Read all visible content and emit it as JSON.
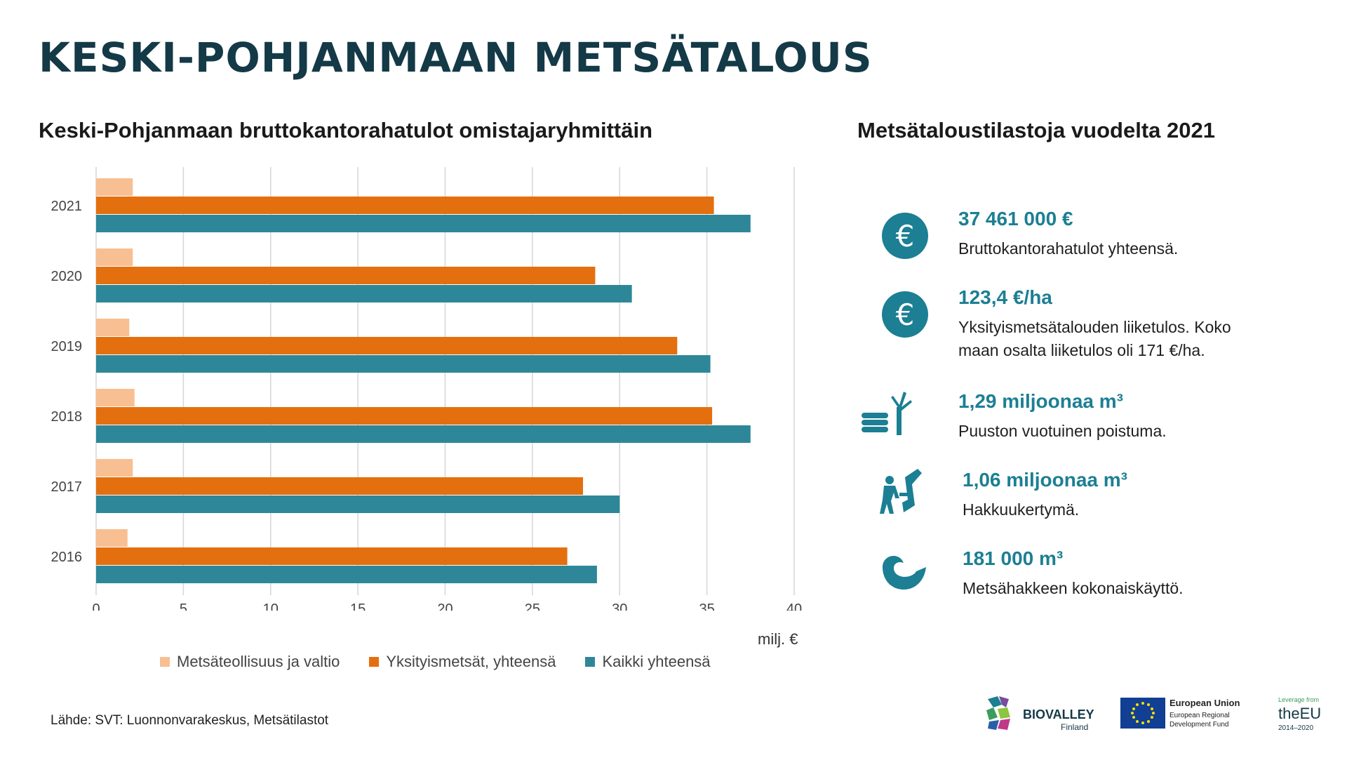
{
  "page_title": "KESKI-POHJANMAAN METSÄTALOUS",
  "chart_data": {
    "type": "bar",
    "orientation": "horizontal",
    "title": "Keski-Pohjanmaan bruttokantorahatulot omistajaryhmittäin",
    "categories": [
      "2021",
      "2020",
      "2019",
      "2018",
      "2017",
      "2016"
    ],
    "series": [
      {
        "name": "Metsäteollisuus ja valtio",
        "color": "#f8bf92",
        "values": [
          2.1,
          2.1,
          1.9,
          2.2,
          2.1,
          1.8
        ]
      },
      {
        "name": "Yksityismetsät, yhteensä",
        "color": "#e46f0f",
        "values": [
          35.4,
          28.6,
          33.3,
          35.3,
          27.9,
          27.0
        ]
      },
      {
        "name": "Kaikki yhteensä",
        "color": "#2e8799",
        "values": [
          37.5,
          30.7,
          35.2,
          37.5,
          30.0,
          28.7
        ]
      }
    ],
    "xlim": [
      0,
      40
    ],
    "xticks": [
      "0",
      "5",
      "10",
      "15",
      "20",
      "25",
      "30",
      "35",
      "40"
    ],
    "xunit": "milj. €",
    "grid": true,
    "legend_position": "bottom"
  },
  "stats_title": "Metsätaloustilastoja vuodelta 2021",
  "stats": [
    {
      "icon": "euro-icon",
      "value": "37 461 000 €",
      "desc": "Bruttokantorahatulot yhteensä."
    },
    {
      "icon": "euro-icon",
      "value": "123,4 €/ha",
      "desc": "Yksityismetsätalouden liiketulos. Koko maan osalta liiketulos oli 171 €/ha."
    },
    {
      "icon": "tree-and-logs-icon",
      "value": "1,29 miljoonaa m³",
      "desc": "Puuston vuotuinen poistuma."
    },
    {
      "icon": "lumberjack-icon",
      "value": "1,06 miljoonaa m³",
      "desc": "Hakkuukertymä."
    },
    {
      "icon": "wood-chip-icon",
      "value": "181 000 m³",
      "desc": "Metsähakkeen kokonaiskäyttö."
    }
  ],
  "source": "Lähde: SVT: Luonnonvarakeskus, Metsätilastot",
  "logos": {
    "biovalley": {
      "name": "BIOVALLEY",
      "sub": "Finland"
    },
    "eu": {
      "line1": "European Union",
      "line2": "European Regional",
      "line3": "Development Fund"
    },
    "leverage": {
      "line1": "Leverage from",
      "line2": "theEU",
      "line3": "2014–2020"
    }
  },
  "colors": {
    "accent": "#1c7f93",
    "title": "#143947"
  }
}
